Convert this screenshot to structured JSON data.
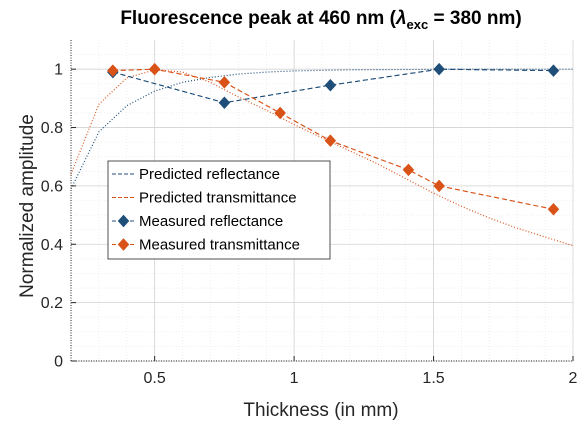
{
  "chart_data": {
    "type": "line",
    "title": {
      "prefix": "Fluorescence peak at 460 nm (",
      "lambda": "λ",
      "subscript": "exc",
      "suffix": " = 380 nm)"
    },
    "xlabel": "Thickness (in mm)",
    "ylabel": "Normalized amplitude",
    "xlim": [
      0.2,
      2.0
    ],
    "ylim": [
      0,
      1.1
    ],
    "x_ticks": [
      0.5,
      1,
      1.5,
      2
    ],
    "x_tick_labels": [
      "0.5",
      "1",
      "1.5",
      "2"
    ],
    "y_ticks": [
      0,
      0.2,
      0.4,
      0.6,
      0.8,
      1
    ],
    "y_tick_labels": [
      "0",
      "0.2",
      "0.4",
      "0.6",
      "0.8",
      "1"
    ],
    "grid": true,
    "minor_grid": true,
    "legend_position": "center-left",
    "series": [
      {
        "name": "Predicted reflectance",
        "style": "dashed",
        "color": "#1f4e79",
        "x": [
          0.35,
          0.75,
          1.13,
          1.52,
          1.93
        ],
        "y": [
          0.99,
          0.885,
          0.945,
          1.0,
          0.995
        ]
      },
      {
        "name": "Predicted transmittance",
        "style": "dashed",
        "color": "#d95319",
        "x": [
          0.35,
          0.5,
          0.75,
          0.95,
          1.13,
          1.41,
          1.52,
          1.93
        ],
        "y": [
          0.995,
          1.0,
          0.955,
          0.85,
          0.755,
          0.655,
          0.6,
          0.52
        ]
      },
      {
        "name": "Measured reflectance",
        "style": "markers-dashed",
        "marker": "diamond",
        "color": "#1f4e79",
        "x": [
          0.35,
          0.75,
          1.13,
          1.52,
          1.93
        ],
        "y": [
          0.99,
          0.885,
          0.945,
          1.0,
          0.995
        ]
      },
      {
        "name": "Measured transmittance",
        "style": "markers-dashed",
        "marker": "diamond",
        "color": "#d95319",
        "x": [
          0.35,
          0.5,
          0.75,
          0.95,
          1.13,
          1.41,
          1.52,
          1.93
        ],
        "y": [
          0.995,
          1.0,
          0.955,
          0.85,
          0.755,
          0.655,
          0.6,
          0.52
        ]
      }
    ],
    "fit_curves": [
      {
        "style": "dotted",
        "color": "#1f4e79",
        "x": [
          0.2,
          0.3,
          0.4,
          0.5,
          0.6,
          0.7,
          0.8,
          0.9,
          1.0,
          1.2,
          1.4,
          1.6,
          1.8,
          2.0
        ],
        "y": [
          0.59,
          0.785,
          0.875,
          0.925,
          0.955,
          0.972,
          0.983,
          0.99,
          0.994,
          0.998,
          0.999,
          1.0,
          1.0,
          1.0
        ]
      },
      {
        "style": "dotted",
        "color": "#d95319",
        "x": [
          0.2,
          0.3,
          0.4,
          0.5,
          0.6,
          0.7,
          0.8,
          0.9,
          1.0,
          1.1,
          1.2,
          1.3,
          1.4,
          1.5,
          1.6,
          1.7,
          1.8,
          1.9,
          2.0
        ],
        "y": [
          0.64,
          0.88,
          0.97,
          0.998,
          0.99,
          0.955,
          0.905,
          0.86,
          0.81,
          0.765,
          0.72,
          0.675,
          0.625,
          0.575,
          0.53,
          0.49,
          0.455,
          0.425,
          0.395
        ]
      }
    ]
  }
}
